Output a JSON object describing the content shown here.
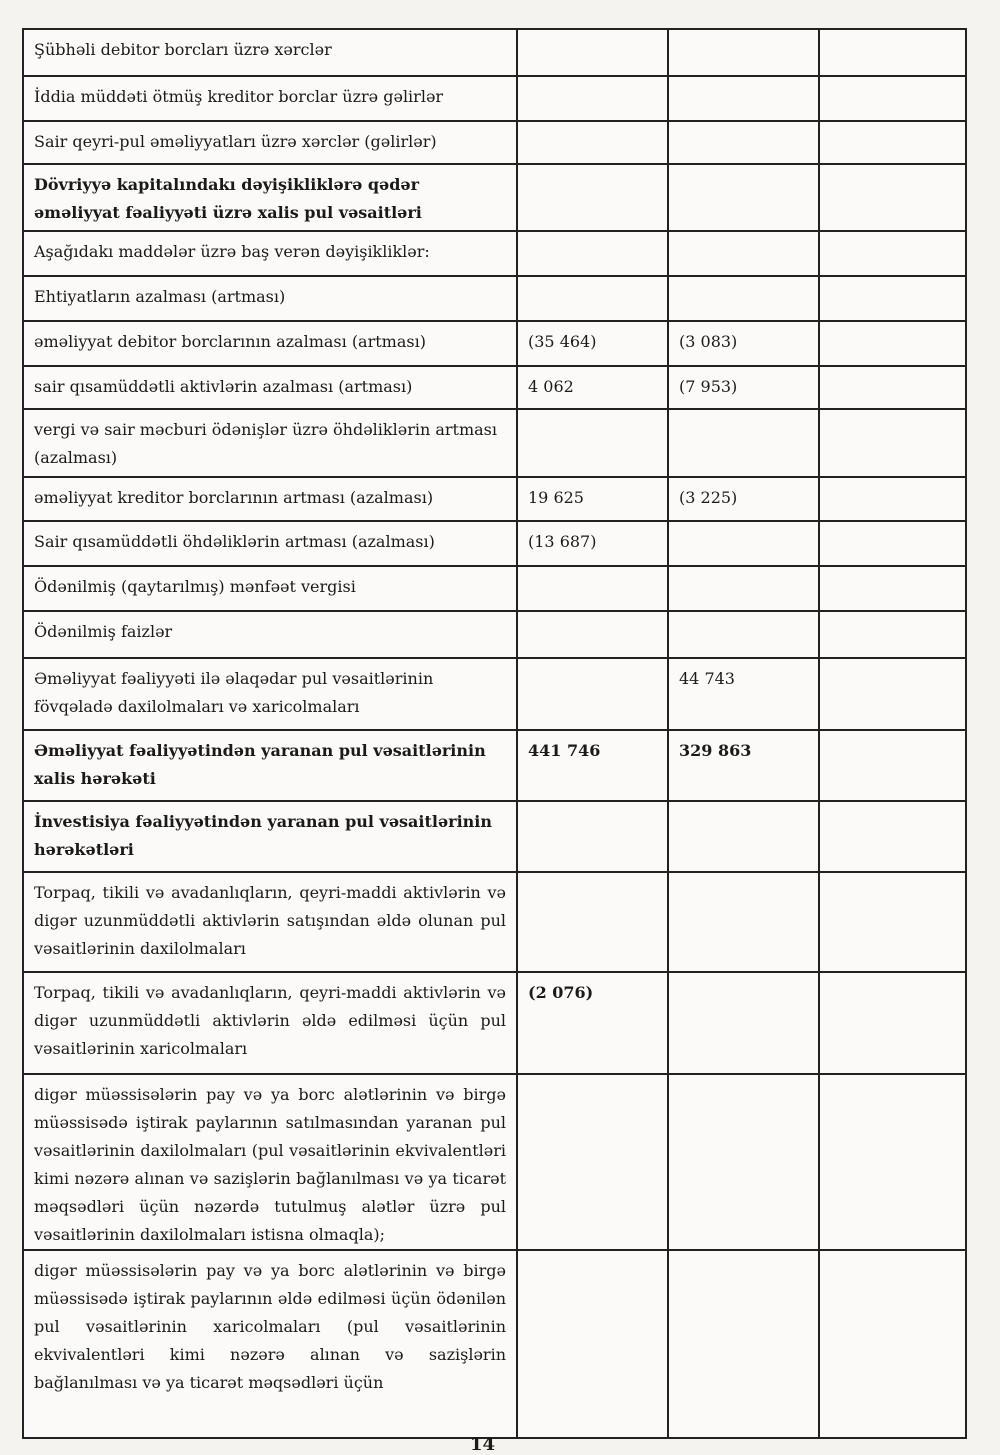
{
  "rows": [
    {
      "label": "Şübhəli debitor borcları üzrə xərclər",
      "v1": "",
      "v2": "",
      "bold": false
    },
    {
      "label": "İddia müddəti ötmüş kreditor borclar üzrə gəlirlər",
      "v1": "",
      "v2": "",
      "bold": false
    },
    {
      "label": "Sair qeyri-pul əməliyyatları üzrə xərclər (gəlirlər)",
      "v1": "",
      "v2": "",
      "bold": false
    },
    {
      "label": "Dövriyyə kapitalındakı dəyişikliklərə qədər əməliyyat fəaliyyəti üzrə xalis pul vəsaitləri",
      "v1": "",
      "v2": "",
      "bold": true
    },
    {
      "label": "Aşağıdakı maddələr üzrə baş verən dəyişikliklər:",
      "v1": "",
      "v2": "",
      "bold": false
    },
    {
      "label": "Ehtiyatların azalması (artması)",
      "v1": "",
      "v2": "",
      "bold": false
    },
    {
      "label": "əməliyyat debitor borclarının azalması (artması)",
      "v1": "(35 464)",
      "v2": "(3 083)",
      "bold": false
    },
    {
      "label": "sair qısamüddətli aktivlərin azalması (artması)",
      "v1": "4 062",
      "v2": "(7 953)",
      "bold": false
    },
    {
      "label": "vergi və sair məcburi ödənişlər üzrə öhdəliklərin artması (azalması)",
      "v1": "",
      "v2": "",
      "bold": false
    },
    {
      "label": "əməliyyat kreditor borclarının artması (azalması)",
      "v1": "19 625",
      "v2": "(3 225)",
      "bold": false
    },
    {
      "label": "Sair qısamüddətli öhdəliklərin artması (azalması)",
      "v1": "(13 687)",
      "v2": "",
      "bold": false
    },
    {
      "label": "Ödənilmiş (qaytarılmış) mənfəət vergisi",
      "v1": "",
      "v2": "",
      "bold": false
    },
    {
      "label": "Ödənilmiş faizlər",
      "v1": "",
      "v2": "",
      "bold": false
    },
    {
      "label": "Əməliyyat fəaliyyəti ilə əlaqədar pul vəsaitlərinin fövqəladə daxilolmaları və xaricolmaları",
      "v1": "",
      "v2": "44 743",
      "bold": false
    },
    {
      "label": "Əməliyyat fəaliyyətindən yaranan pul vəsaitlərinin xalis hərəkəti",
      "v1": "441 746",
      "v2": "329 863",
      "bold": true
    },
    {
      "label": "İnvestisiya fəaliyyətindən yaranan pul vəsaitlərinin hərəkətləri",
      "v1": "",
      "v2": "",
      "bold": true
    },
    {
      "label": "Torpaq, tikili və avadanlıqların, qeyri-maddi aktivlərin və digər uzunmüddətli aktivlərin satışından əldə olunan pul vəsaitlərinin daxilolmaları",
      "v1": "",
      "v2": "",
      "bold": false
    },
    {
      "label": "Torpaq, tikili və avadanlıqların, qeyri-maddi aktivlərin və digər uzunmüddətli aktivlərin əldə edilməsi üçün pul vəsaitlərinin xaricolmaları",
      "v1": "(2 076)",
      "v2": "",
      "bold": false,
      "v1bold": true
    },
    {
      "label": "digər müəssisələrin pay və ya borc alətlərinin və birgə müəssisədə iştirak paylarının satılmasından yaranan pul vəsaitlərinin daxilolmaları (pul vəsaitlərinin ekvivalentləri kimi nəzərə alınan və sazişlərin bağlanılması və ya ticarət məqsədləri üçün nəzərdə tutulmuş alətlər üzrə pul vəsaitlərinin daxilolmaları istisna olmaqla);",
      "v1": "",
      "v2": "",
      "bold": false
    },
    {
      "label": "digər müəssisələrin pay və ya borc alətlərinin və birgə müəssisədə iştirak paylarının əldə edilməsi üçün ödənilən pul vəsaitlərinin xaricolmaları (pul vəsaitlərinin ekvivalentləri kimi nəzərə alınan və sazişlərin bağlanılması və ya ticarət məqsədləri üçün",
      "v1": "",
      "v2": "",
      "bold": false
    }
  ],
  "page_number": "14"
}
